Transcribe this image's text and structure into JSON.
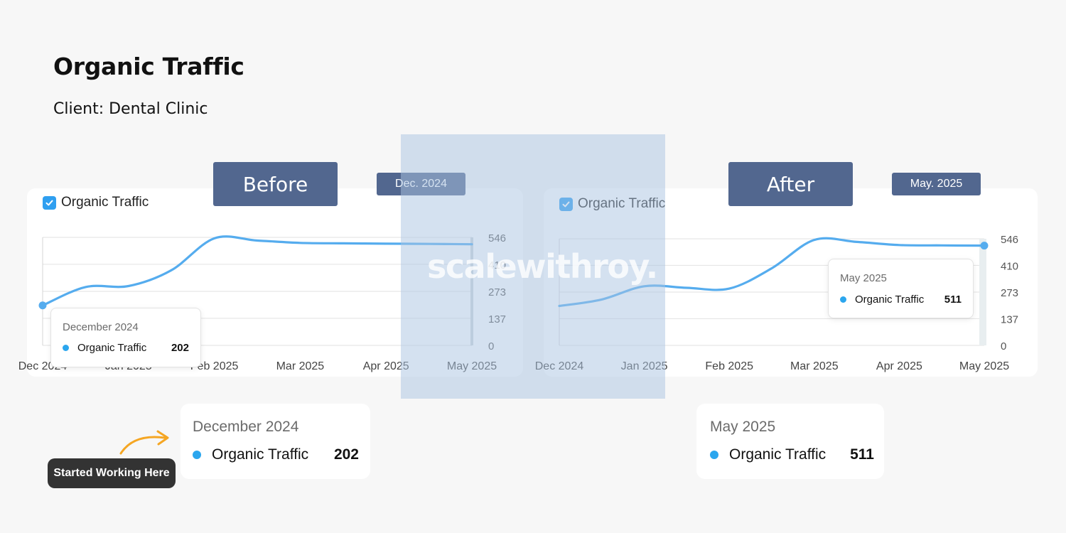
{
  "page": {
    "title": "Organic Traffic",
    "subtitle": "Client: Dental Clinic",
    "watermark": "scalewithroy.",
    "callout": "Started Working Here"
  },
  "colors": {
    "line": "#55acee",
    "banner": "#52678f",
    "checkbox": "#2f9ff0",
    "overlay": "#aac3e1",
    "legend_dot": "#2ba6ee"
  },
  "icons": {
    "checkbox": "check-icon",
    "arrow": "curved-arrow-icon"
  },
  "before": {
    "banner": "Before",
    "date_badge": "Dec. 2024",
    "legend": "Organic Traffic",
    "tooltip": {
      "date": "December 2024",
      "series": "Organic Traffic",
      "value": "202"
    },
    "summary": {
      "date": "December 2024",
      "series": "Organic Traffic",
      "value": "202"
    }
  },
  "after": {
    "banner": "After",
    "date_badge": "May. 2025",
    "legend": "Organic Traffic",
    "tooltip": {
      "date": "May 2025",
      "series": "Organic Traffic",
      "value": "511"
    },
    "summary": {
      "date": "May 2025",
      "series": "Organic Traffic",
      "value": "511"
    }
  },
  "chart_data": [
    {
      "type": "line",
      "x_labels": [
        "Dec 2024",
        "Jan 2025",
        "Feb 2025",
        "Mar 2025",
        "Apr 2025",
        "May 2025"
      ],
      "x": [
        0,
        0.5,
        1,
        1.5,
        2,
        2.5,
        3,
        3.5,
        4,
        4.5,
        5
      ],
      "series": [
        {
          "name": "Organic Traffic",
          "values": [
            202,
            295,
            300,
            380,
            541,
            530,
            518,
            516,
            514,
            513,
            511
          ]
        }
      ],
      "y_ticks": [
        0,
        137,
        273,
        410,
        546
      ],
      "ylim": [
        0,
        546
      ],
      "y_axis_position": "right",
      "grid": true,
      "highlighted_point": {
        "x": "Dec 2024",
        "value": 202
      }
    },
    {
      "type": "line",
      "x_labels": [
        "Dec 2024",
        "Jan 2025",
        "Feb 2025",
        "Mar 2025",
        "Apr 2025",
        "May 2025"
      ],
      "x": [
        0,
        0.5,
        1,
        1.5,
        2,
        2.5,
        3,
        3.5,
        4,
        4.5,
        5
      ],
      "series": [
        {
          "name": "Organic Traffic",
          "values": [
            202,
            235,
            303,
            295,
            291,
            395,
            540,
            530,
            514,
            512,
            511
          ]
        }
      ],
      "y_ticks": [
        0,
        137,
        273,
        410,
        546
      ],
      "ylim": [
        0,
        546
      ],
      "y_axis_position": "right",
      "grid": true,
      "highlighted_point": {
        "x": "May 2025",
        "value": 511
      }
    }
  ]
}
